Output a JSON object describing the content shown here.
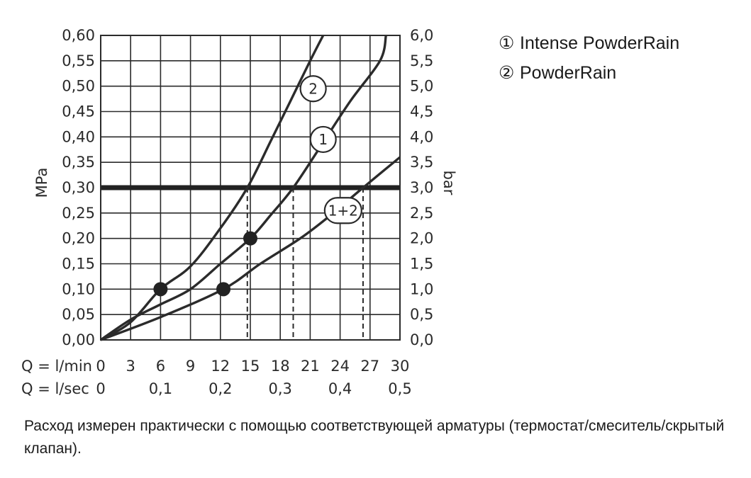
{
  "chart_data": {
    "type": "line",
    "left_axis": {
      "label": "MPa",
      "ylim": [
        0,
        0.6
      ],
      "ticks": [
        "0,00",
        "0,05",
        "0,10",
        "0,15",
        "0,20",
        "0,25",
        "0,30",
        "0,35",
        "0,40",
        "0,45",
        "0,50",
        "0,55",
        "0,60"
      ]
    },
    "right_axis": {
      "label": "bar",
      "ylim": [
        0,
        6.0
      ],
      "ticks": [
        "0,0",
        "0,5",
        "1,0",
        "1,5",
        "2,0",
        "2,5",
        "3,0",
        "3,5",
        "4,0",
        "4,5",
        "5,0",
        "5,5",
        "6,0"
      ]
    },
    "x_axis": {
      "xlim": [
        0,
        30
      ],
      "lmin_label": "Q = l/min",
      "lmin_ticks": [
        {
          "value": 0,
          "text": "0"
        },
        {
          "value": 3,
          "text": "3"
        },
        {
          "value": 6,
          "text": "6"
        },
        {
          "value": 9,
          "text": "9"
        },
        {
          "value": 12,
          "text": "12"
        },
        {
          "value": 15,
          "text": "15"
        },
        {
          "value": 18,
          "text": "18"
        },
        {
          "value": 21,
          "text": "21"
        },
        {
          "value": 24,
          "text": "24"
        },
        {
          "value": 27,
          "text": "27"
        },
        {
          "value": 30,
          "text": "30"
        }
      ],
      "lsec_label": "Q = l/sec",
      "lsec_ticks": [
        {
          "value": 0,
          "text": "0"
        },
        {
          "value": 6,
          "text": "0,1"
        },
        {
          "value": 12,
          "text": "0,2"
        },
        {
          "value": 18,
          "text": "0,3"
        },
        {
          "value": 24,
          "text": "0,4"
        },
        {
          "value": 30,
          "text": "0,5"
        }
      ]
    },
    "grid": true,
    "reference_line": {
      "y": 0.3
    },
    "series": [
      {
        "label": "2",
        "points": [
          [
            0,
            0
          ],
          [
            3,
            0.035
          ],
          [
            6,
            0.1
          ],
          [
            9,
            0.145
          ],
          [
            12,
            0.22
          ],
          [
            14.7,
            0.3
          ],
          [
            17,
            0.39
          ],
          [
            19,
            0.47
          ],
          [
            21,
            0.55
          ],
          [
            22.3,
            0.6
          ]
        ]
      },
      {
        "label": "1",
        "points": [
          [
            0,
            0
          ],
          [
            3,
            0.04
          ],
          [
            6,
            0.07
          ],
          [
            9,
            0.1
          ],
          [
            12,
            0.15
          ],
          [
            15,
            0.2
          ],
          [
            17,
            0.245
          ],
          [
            19.3,
            0.3
          ],
          [
            22,
            0.38
          ],
          [
            25,
            0.47
          ],
          [
            28,
            0.55
          ],
          [
            28.6,
            0.6
          ]
        ]
      },
      {
        "label": "1+2",
        "points": [
          [
            0,
            0
          ],
          [
            6,
            0.045
          ],
          [
            12.3,
            0.1
          ],
          [
            16,
            0.15
          ],
          [
            20,
            0.2
          ],
          [
            23,
            0.245
          ],
          [
            26.3,
            0.3
          ],
          [
            30,
            0.36
          ]
        ]
      }
    ],
    "markers": [
      [
        6,
        0.1
      ],
      [
        12.3,
        0.1
      ],
      [
        15,
        0.2
      ]
    ],
    "dashed_drops": [
      14.7,
      19.3,
      26.3
    ]
  },
  "legend": [
    {
      "marker": "①",
      "text": "Intense PowderRain"
    },
    {
      "marker": "②",
      "text": "PowderRain"
    }
  ],
  "footnote": "Расход измерен практически с помощью соответствующей арматуры (термостат/смеситель/скрытый клапан)."
}
